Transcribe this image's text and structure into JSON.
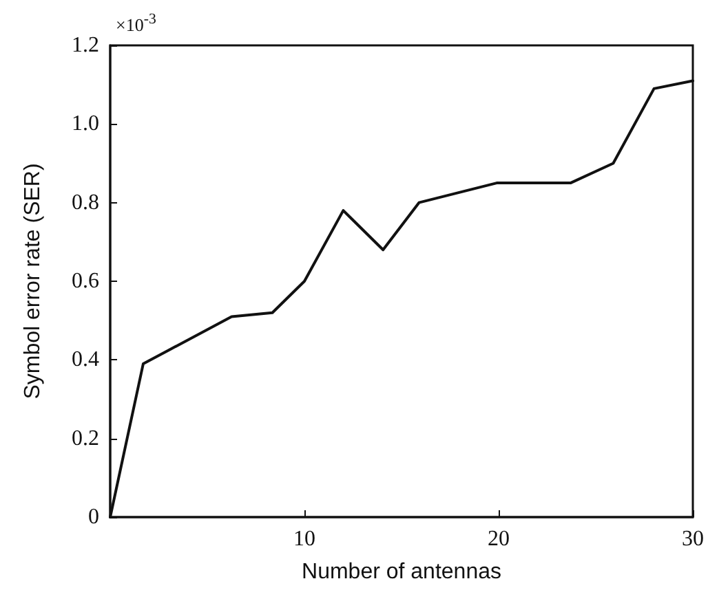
{
  "chart_data": {
    "type": "line",
    "xlabel": "Number of antennas",
    "ylabel": "Symbol error rate (SER)",
    "annotations": [
      "×10$^{-3}$"
    ],
    "x": [
      0,
      1.7,
      6.25,
      8.35,
      10,
      12,
      14.05,
      15.9,
      19.9,
      23.7,
      25.9,
      28,
      30
    ],
    "series": [
      {
        "color": "#111111",
        "values": [
          0,
          0.39,
          0.51,
          0.52,
          0.6,
          0.78,
          0.68,
          0.8,
          0.85,
          0.85,
          0.9,
          1.09,
          1.11
        ]
      }
    ],
    "xlim": [
      0,
      30
    ],
    "xticks": [
      10,
      20,
      30
    ],
    "ylim": [
      0,
      1.2
    ],
    "yticks": [
      0,
      0.2,
      0.4,
      0.6,
      0.8,
      {
        "value": 1,
        "label": "1.0"
      },
      1.2
    ],
    "marker": "none",
    "line_style": "solid"
  }
}
